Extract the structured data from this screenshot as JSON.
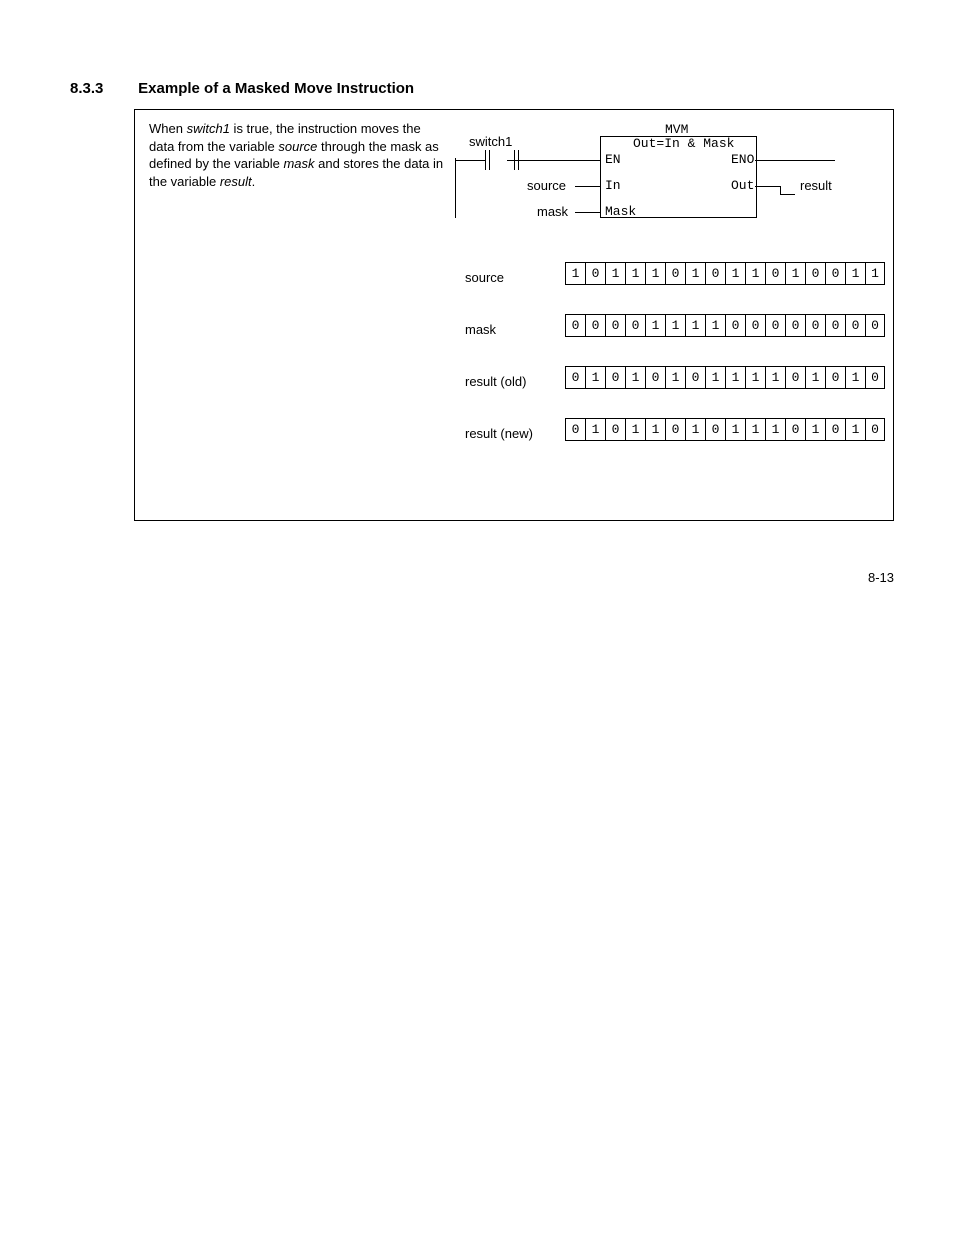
{
  "section_number": "8.3.3",
  "section_title": "Example of a Masked Move Instruction",
  "description": {
    "prefix": "When ",
    "switch": "switch1",
    "mid1": " is true, the instruction moves the data from the variable ",
    "source": "source",
    "mid2": " through the mask as defined by the variable ",
    "mask": "mask",
    "mid3": " and stores the data in the variable ",
    "result": "result",
    "suffix": "."
  },
  "diagram_labels": {
    "switch1": "switch1",
    "source": "source",
    "mask": "mask",
    "result": "result",
    "mvm": "MVM",
    "eq": "Out=In & Mask",
    "en": "EN",
    "eno": "ENO",
    "in": "In",
    "out": "Out",
    "maskport": "Mask"
  },
  "rows": {
    "source": {
      "label": "source",
      "bits": [
        "1",
        "0",
        "1",
        "1",
        "1",
        "0",
        "1",
        "0",
        "1",
        "1",
        "0",
        "1",
        "0",
        "0",
        "1",
        "1"
      ]
    },
    "mask": {
      "label": "mask",
      "bits": [
        "0",
        "0",
        "0",
        "0",
        "1",
        "1",
        "1",
        "1",
        "0",
        "0",
        "0",
        "0",
        "0",
        "0",
        "0",
        "0"
      ]
    },
    "result_old": {
      "label": "result (old)",
      "bits": [
        "0",
        "1",
        "0",
        "1",
        "0",
        "1",
        "0",
        "1",
        "1",
        "1",
        "1",
        "0",
        "1",
        "0",
        "1",
        "0"
      ]
    },
    "result_new": {
      "label": "result (new)",
      "bits": [
        "0",
        "1",
        "0",
        "1",
        "1",
        "0",
        "1",
        "0",
        "1",
        "1",
        "1",
        "0",
        "1",
        "0",
        "1",
        "0"
      ]
    }
  },
  "page_number": "8-13"
}
